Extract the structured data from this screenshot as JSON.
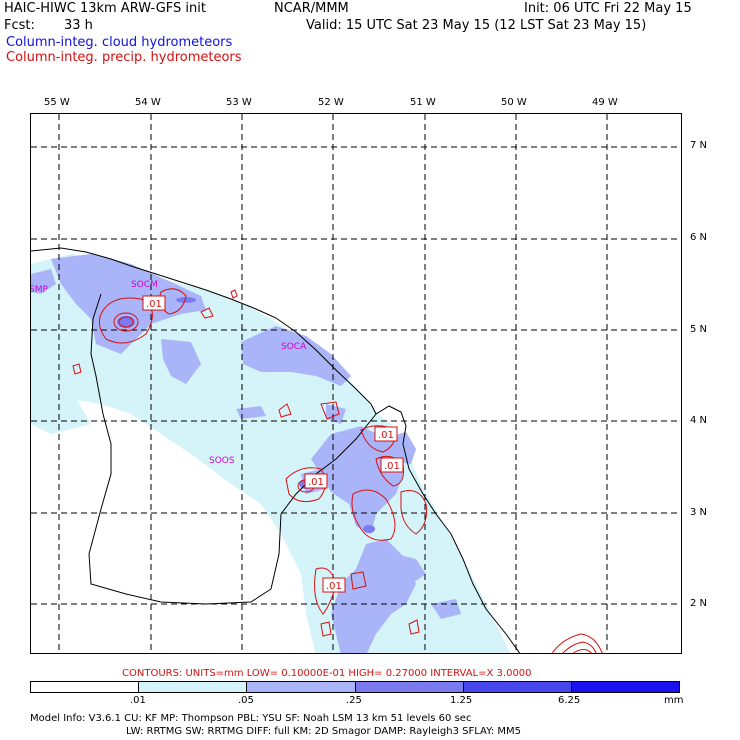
{
  "header": {
    "title": "HAIC-HIWC 13km ARW-GFS init",
    "org": "NCAR/MMM",
    "init": "Init: 06 UTC Fri 22 May 15",
    "fcst_label": "Fcst:",
    "fcst_value": "33 h",
    "valid": "Valid: 15 UTC Sat 23 May 15 (12 LST Sat 23 May 15)",
    "field_cloud": "Column-integ. cloud hydrometeors",
    "field_precip": "Column-integ. precip. hydrometeors"
  },
  "map": {
    "lon_labels": [
      "55 W",
      "54 W",
      "53 W",
      "52 W",
      "51 W",
      "50 W",
      "49 W"
    ],
    "lat_labels": [
      "7 N",
      "6 N",
      "5 N",
      "4 N",
      "3 N",
      "2 N"
    ],
    "station_labels": [
      "SMP",
      "SOCM",
      "SOCA",
      "SOOS"
    ],
    "contour_labels": [
      ".01",
      ".01",
      ".01",
      ".01",
      ".01"
    ]
  },
  "contour_info": "CONTOURS:  UNITS=mm  LOW= 0.10000E-01  HIGH= 0.27000        INTERVAL=X  3.0000",
  "legend": {
    "levels": [
      ".01",
      ".05",
      ".25",
      "1.25",
      "6.25"
    ],
    "units": "mm",
    "colors": [
      "#ffffff",
      "#d4f4fa",
      "#aab4f8",
      "#7b7bef",
      "#4646ec",
      "#1a10f0"
    ]
  },
  "model_info": {
    "line1": "Model Info: V3.6.1     CU: KF       MP: Thompson      PBL: YSU       SF: Noah LSM      13 km    51 levels   60 sec",
    "line2": "LW: RRTMG    SW: RRTMG   DIFF: full     KM: 2D Smagor  DAMP: Rayleigh3   SFLAY: MM5"
  }
}
